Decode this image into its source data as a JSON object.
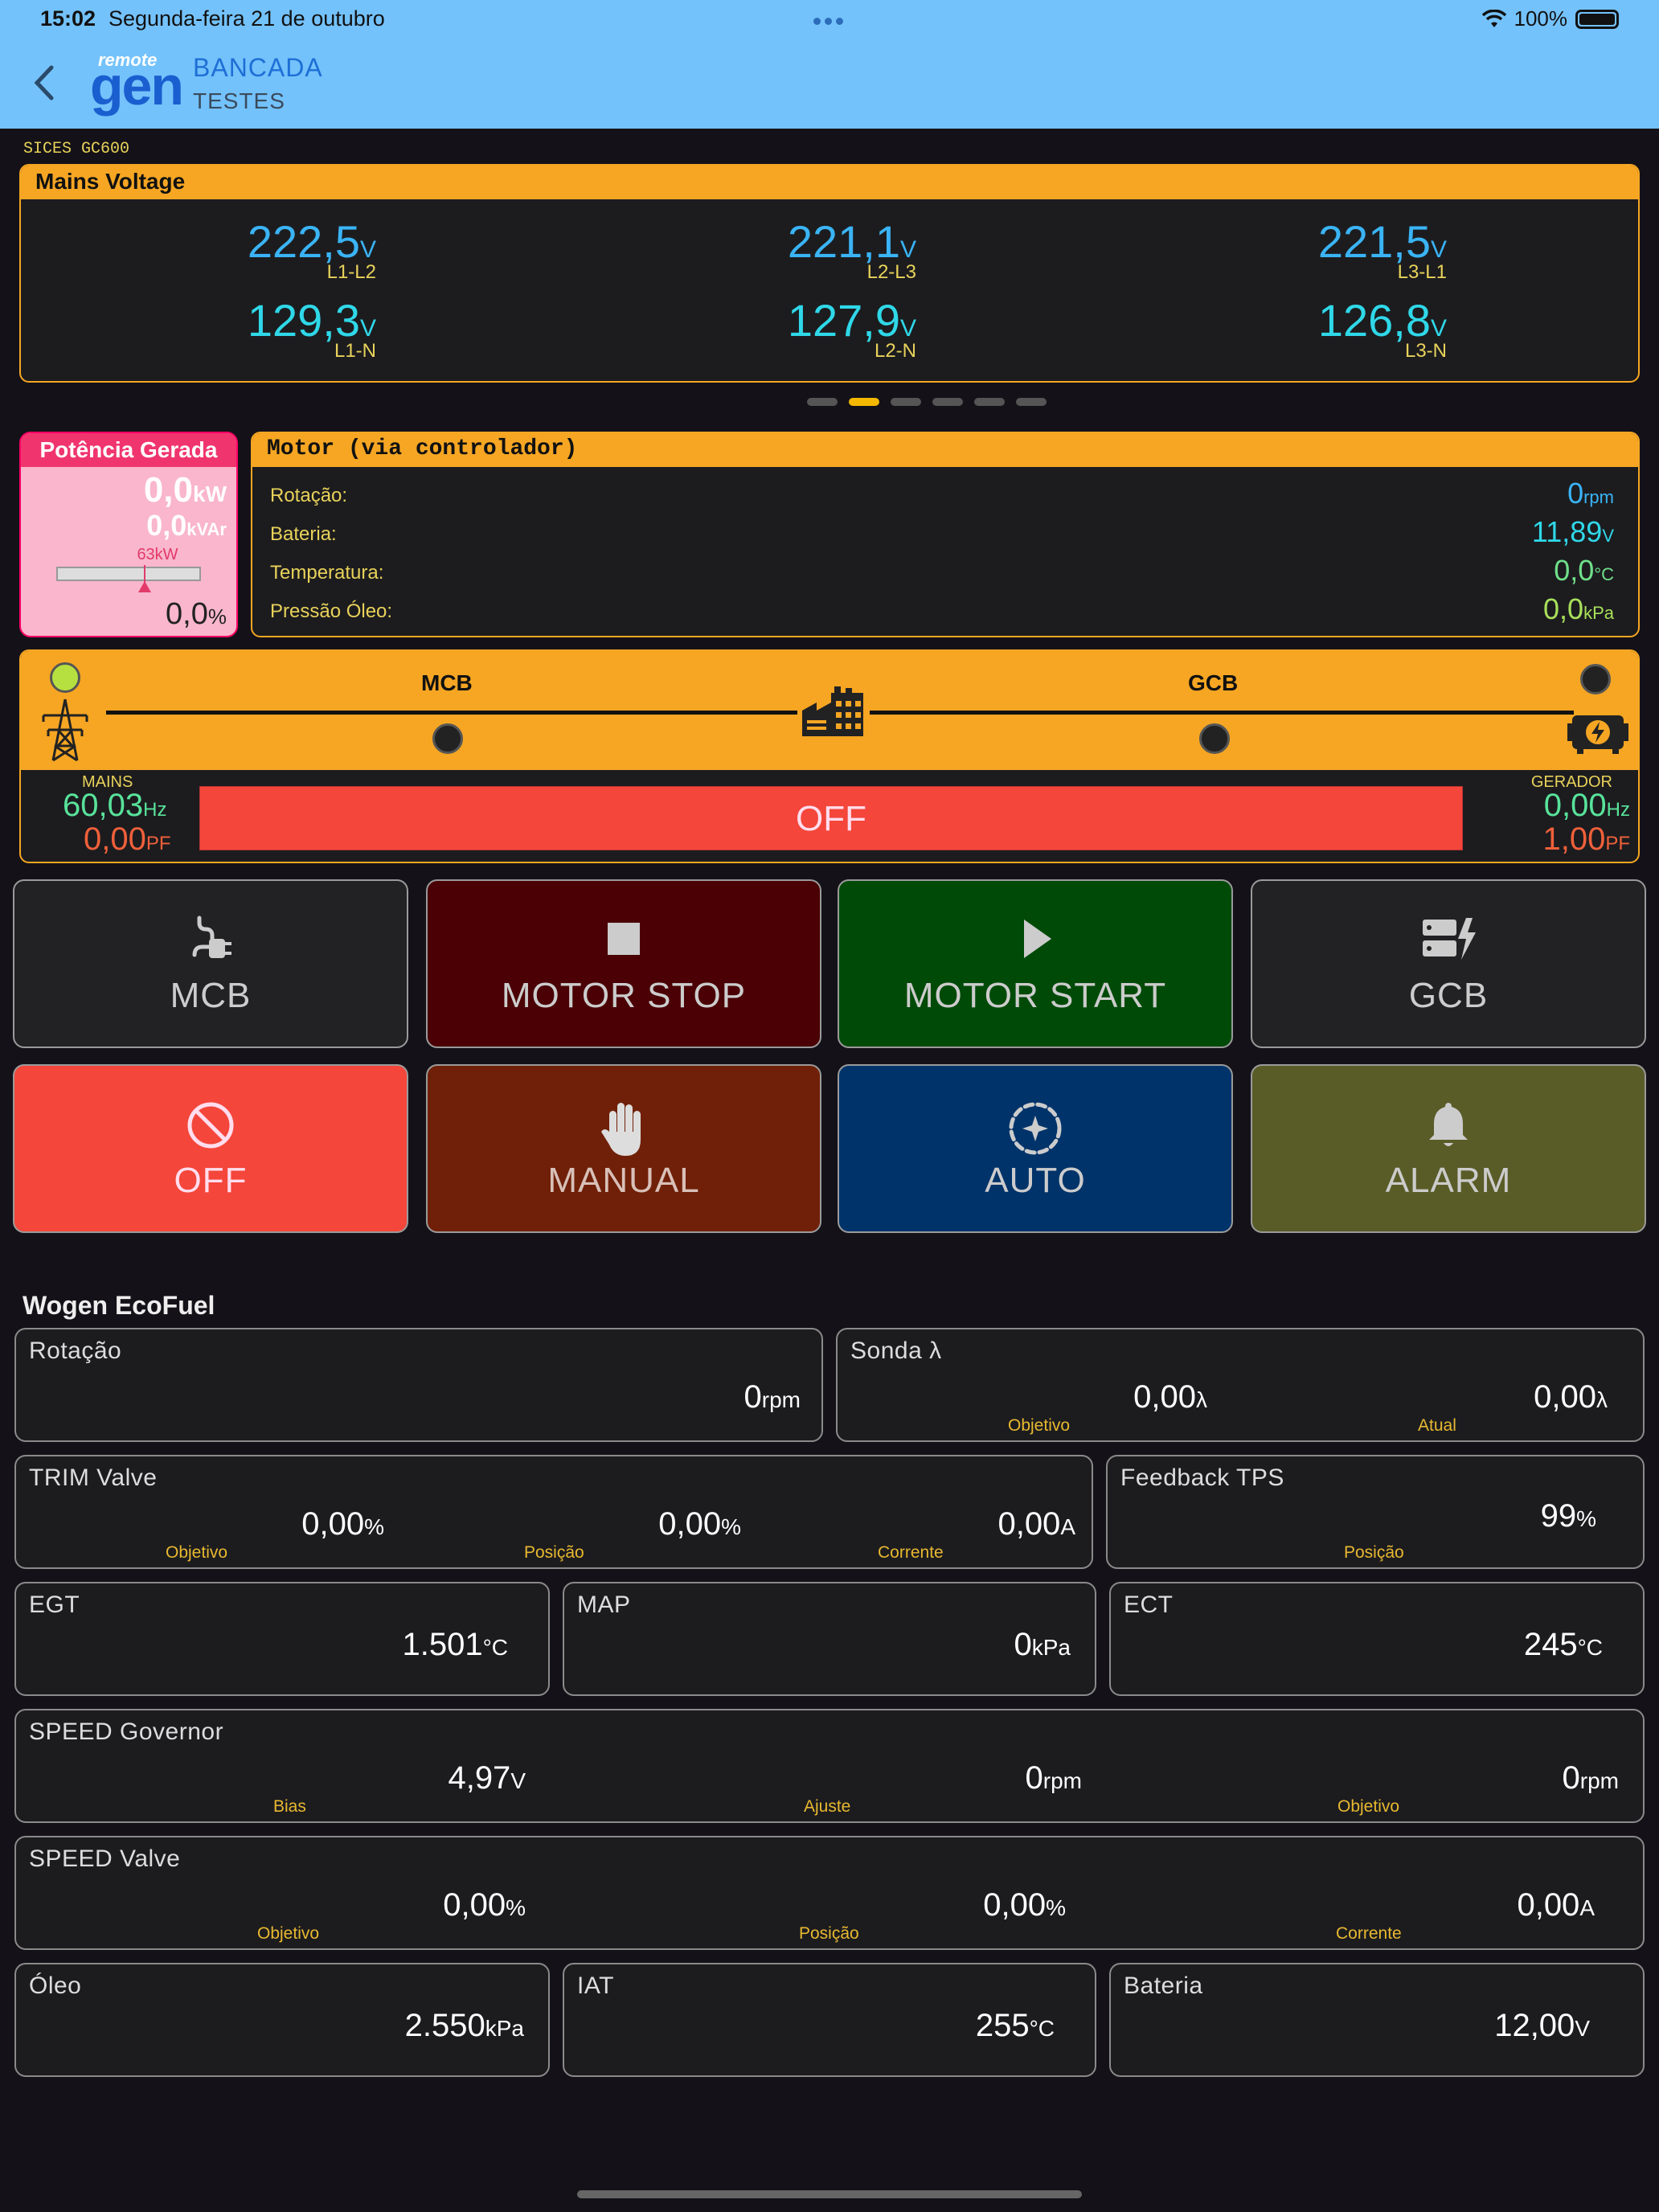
{
  "status": {
    "time": "15:02",
    "date": "Segunda-feira 21 de outubro",
    "battery": "100%"
  },
  "header": {
    "logo_top": "remote",
    "logo_main": "gen",
    "name": "BANCADA",
    "subtitle": "TESTES"
  },
  "controller": "SICES GC600",
  "mains_voltage": {
    "title": "Mains Voltage",
    "items": [
      {
        "value": "222,5",
        "unit": "V",
        "label": "L1-L2"
      },
      {
        "value": "221,1",
        "unit": "V",
        "label": "L2-L3"
      },
      {
        "value": "221,5",
        "unit": "V",
        "label": "L3-L1"
      },
      {
        "value": "129,3",
        "unit": "V",
        "label": "L1-N"
      },
      {
        "value": "127,9",
        "unit": "V",
        "label": "L2-N"
      },
      {
        "value": "126,8",
        "unit": "V",
        "label": "L3-N"
      }
    ]
  },
  "page_indicator": {
    "count": 6,
    "active_index": 1
  },
  "potencia": {
    "title": "Potência Gerada",
    "kw": "0,0",
    "kw_unit": "kW",
    "kvar": "0,0",
    "kvar_unit": "kVAr",
    "scale_label": "63kW",
    "percent": "0,0",
    "percent_unit": "%"
  },
  "motor": {
    "title": "Motor (via controlador)",
    "rows": [
      {
        "label": "Rotação:",
        "value": "0",
        "unit": "rpm",
        "color": "#3ab4f5"
      },
      {
        "label": "Bateria:",
        "value": "11,89",
        "unit": "V",
        "color": "#2fd8e8"
      },
      {
        "label": "Temperatura:",
        "value": "0,0",
        "unit": "°C",
        "color": "#6fe08a"
      },
      {
        "label": "Pressão Óleo:",
        "value": "0,0",
        "unit": "kPa",
        "color": "#a8e05a"
      }
    ]
  },
  "sld": {
    "mcb": "MCB",
    "gcb": "GCB",
    "mains_label": "MAINS",
    "mains_hz": "60,03",
    "mains_hz_unit": "Hz",
    "mains_pf": "0,00",
    "mains_pf_unit": "PF",
    "gen_label": "GERADOR",
    "gen_hz": "0,00",
    "gen_hz_unit": "Hz",
    "gen_pf": "1,00",
    "gen_pf_unit": "PF",
    "state": "OFF"
  },
  "buttons": {
    "mcb": "MCB",
    "motor_stop": "MOTOR STOP",
    "motor_start": "MOTOR START",
    "gcb": "GCB",
    "off": "OFF",
    "manual": "MANUAL",
    "auto": "AUTO",
    "alarm": "ALARM"
  },
  "wogen": {
    "title": "Wogen EcoFuel",
    "rotacao": {
      "title": "Rotação",
      "value": "0",
      "unit": "rpm"
    },
    "sonda": {
      "title": "Sonda λ",
      "v1": "0,00",
      "u1": "λ",
      "l1": "Objetivo",
      "v2": "0,00",
      "u2": "λ",
      "l2": "Atual"
    },
    "trim": {
      "title": "TRIM Valve",
      "v1": "0,00",
      "u1": "%",
      "l1": "Objetivo",
      "v2": "0,00",
      "u2": "%",
      "l2": "Posição",
      "v3": "0,00",
      "u3": "A",
      "l3": "Corrente"
    },
    "tps": {
      "title": "Feedback TPS",
      "value": "99",
      "unit": "%",
      "label": "Posição"
    },
    "egt": {
      "title": "EGT",
      "value": "1.501",
      "unit": "°C"
    },
    "map": {
      "title": "MAP",
      "value": "0",
      "unit": "kPa"
    },
    "ect": {
      "title": "ECT",
      "value": "245",
      "unit": "°C"
    },
    "governor": {
      "title": "SPEED Governor",
      "v1": "4,97",
      "u1": "V",
      "l1": "Bias",
      "v2": "0",
      "u2": "rpm",
      "l2": "Ajuste",
      "v3": "0",
      "u3": "rpm",
      "l3": "Objetivo"
    },
    "valve": {
      "title": "SPEED Valve",
      "v1": "0,00",
      "u1": "%",
      "l1": "Objetivo",
      "v2": "0,00",
      "u2": "%",
      "l2": "Posição",
      "v3": "0,00",
      "u3": "A",
      "l3": "Corrente"
    },
    "oleo": {
      "title": "Óleo",
      "value": "2.550",
      "unit": "kPa"
    },
    "iat": {
      "title": "IAT",
      "value": "255",
      "unit": "°C"
    },
    "bateria": {
      "title": "Bateria",
      "value": "12,00",
      "unit": "V"
    }
  }
}
